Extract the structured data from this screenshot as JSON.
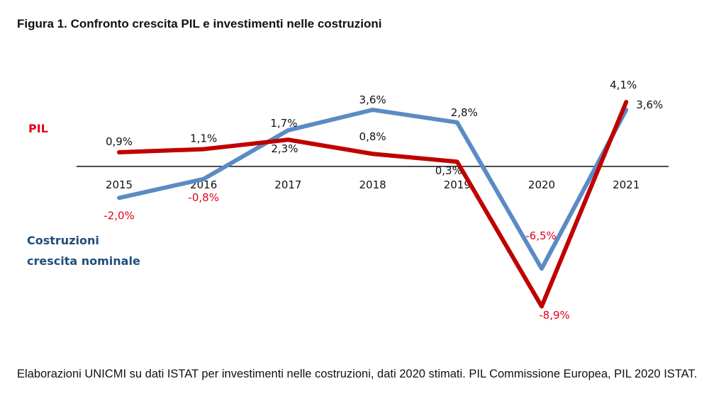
{
  "chart_data": {
    "type": "line",
    "title": "Figura 1. Confronto crescita PIL e investimenti nelle costruzioni",
    "xlabel": "",
    "ylabel": "",
    "categories": [
      "2015",
      "2016",
      "2017",
      "2018",
      "2019",
      "2020",
      "2021"
    ],
    "ylim": [
      -10,
      5
    ],
    "grid": false,
    "series": [
      {
        "name": "PIL",
        "color": "#c00000",
        "legend_color": "#e3001b",
        "values": [
          0.9,
          1.1,
          1.7,
          0.8,
          0.3,
          -8.9,
          4.1
        ]
      },
      {
        "name": "Costruzioni crescita nominale",
        "color": "#5b8bc4",
        "legend_color": "#1f4e79",
        "values": [
          -2.0,
          -0.8,
          2.3,
          3.6,
          2.8,
          -6.5,
          3.6
        ]
      }
    ],
    "data_labels": [
      {
        "text": "0,9%",
        "color": "#111111",
        "category": "2015",
        "anchor": "above-pil"
      },
      {
        "text": "1,1%",
        "color": "#111111",
        "category": "2016",
        "anchor": "above-pil"
      },
      {
        "text": "1,7%",
        "color": "#111111",
        "category": "2017",
        "anchor": "above-cost"
      },
      {
        "text": "2,3%",
        "color": "#111111",
        "category": "2017",
        "anchor": "below-pil"
      },
      {
        "text": "0,8%",
        "color": "#111111",
        "category": "2018",
        "anchor": "above-pil"
      },
      {
        "text": "3,6%",
        "color": "#111111",
        "category": "2018",
        "anchor": "above-cost"
      },
      {
        "text": "0,3%",
        "color": "#111111",
        "category": "2019",
        "anchor": "below-pil"
      },
      {
        "text": "2,8%",
        "color": "#111111",
        "category": "2019",
        "anchor": "above-cost"
      },
      {
        "text": "-2,0%",
        "color": "#e3001b",
        "category": "2015",
        "anchor": "below-cost"
      },
      {
        "text": "-0,8%",
        "color": "#e3001b",
        "category": "2016",
        "anchor": "below-cost"
      },
      {
        "text": "-6,5%",
        "color": "#e3001b",
        "category": "2020",
        "anchor": "above-cost"
      },
      {
        "text": "-8,9%",
        "color": "#e3001b",
        "category": "2020",
        "anchor": "below-pil"
      },
      {
        "text": "4,1%",
        "color": "#111111",
        "category": "2021",
        "anchor": "above-pil"
      },
      {
        "text": "3,6%",
        "color": "#111111",
        "category": "2021",
        "anchor": "right-cost"
      }
    ],
    "legend": [
      {
        "label": "PIL",
        "placement": "left-upper"
      },
      {
        "label_lines": [
          "Costruzioni",
          "crescita nominale"
        ],
        "placement": "left-lower"
      }
    ]
  },
  "footnote": "Elaborazioni UNICMI su dati ISTAT per investimenti nelle costruzioni, dati 2020 stimati. PIL Commissione Europea, PIL 2020 ISTAT."
}
